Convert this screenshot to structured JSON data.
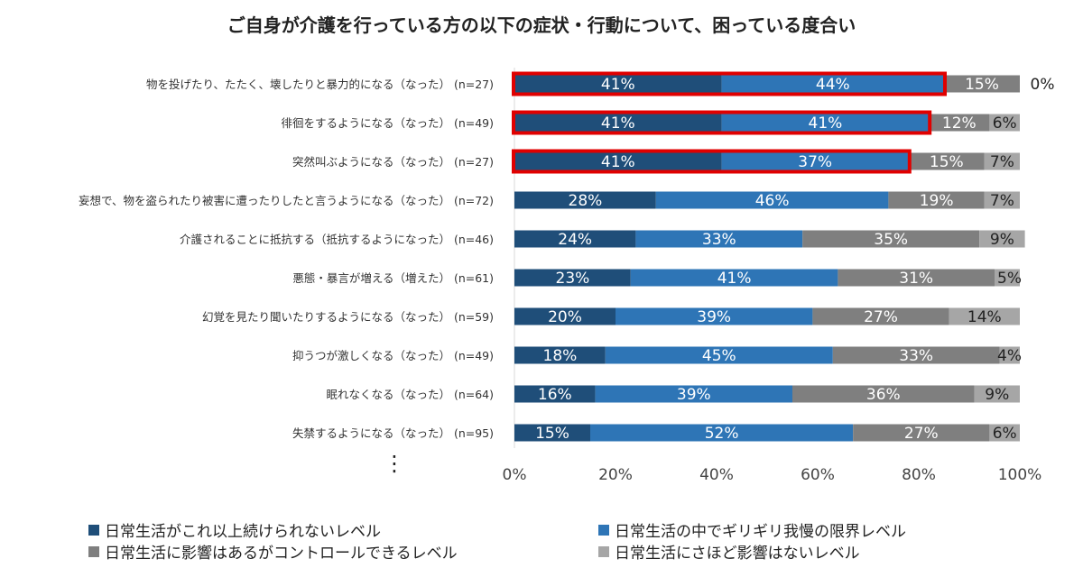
{
  "chart_data": {
    "type": "bar",
    "orientation": "horizontal-stacked-100",
    "title": "ご自身が介護を行っている方の以下の症状・行動について、困っている度合い",
    "categories": [
      "物を投げたり、たたく、壊したりと暴力的になる（なった） (n=27)",
      "徘徊をするようになる（なった） (n=49)",
      "突然叫ぶようになる（なった） (n=27)",
      "妄想で、物を盗られたり被害に遭ったりしたと言うようになる（なった） (n=72)",
      "介護されることに抵抗する（抵抗するようになった） (n=46)",
      "悪態・暴言が増える（増えた） (n=61)",
      "幻覚を見たり聞いたりするようになる（なった） (n=59)",
      "抑うつが激しくなる（なった） (n=49)",
      "眠れなくなる（なった） (n=64)",
      "失禁するようになる（なった） (n=95)"
    ],
    "series": [
      {
        "name": "日常生活がこれ以上続けられないレベル",
        "color": "#1f4e79",
        "values": [
          41,
          41,
          41,
          28,
          24,
          23,
          20,
          18,
          16,
          15
        ]
      },
      {
        "name": "日常生活の中でギリギリ我慢の限界レベル",
        "color": "#2e75b6",
        "values": [
          44,
          41,
          37,
          46,
          33,
          41,
          39,
          45,
          39,
          52
        ]
      },
      {
        "name": "日常生活に影響はあるがコントロールできるレベル",
        "color": "#7f7f7f",
        "values": [
          15,
          12,
          15,
          19,
          35,
          31,
          27,
          33,
          36,
          27
        ]
      },
      {
        "name": "日常生活にさほど影響はないレベル",
        "color": "#a6a6a6",
        "values": [
          0,
          6,
          7,
          7,
          9,
          5,
          14,
          4,
          9,
          6
        ]
      }
    ],
    "highlighted_rows": [
      0,
      1,
      2
    ],
    "highlight_color": "#e00000",
    "xlim": [
      0,
      100
    ],
    "xticks": [
      "0%",
      "20%",
      "40%",
      "60%",
      "80%",
      "100%"
    ],
    "ellipsis": "⋮",
    "legend_position": "bottom"
  }
}
